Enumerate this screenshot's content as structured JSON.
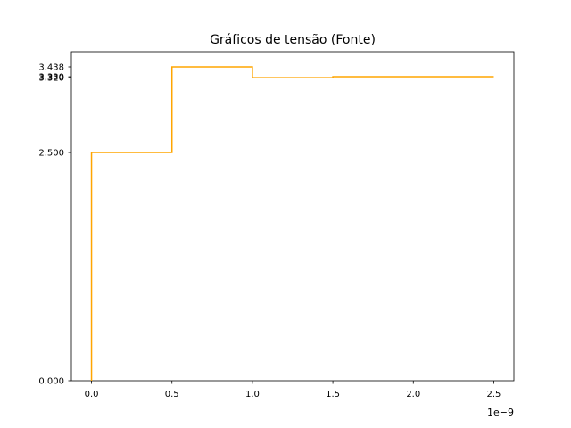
{
  "chart_data": {
    "type": "line",
    "drawstyle": "steps-post",
    "title": "Gráficos de tensão (Fonte)",
    "xlabel": "",
    "ylabel": "",
    "color": "#ffa500",
    "grid": false,
    "legend": "none",
    "x_offset_text": "1e−9",
    "xlim": [
      -1.25e-10,
      2.625e-09
    ],
    "ylim": [
      0.0,
      3.438
    ],
    "x_ticks": [
      {
        "value": 0.0,
        "label": "0.0"
      },
      {
        "value": 5e-10,
        "label": "0.5"
      },
      {
        "value": 1e-09,
        "label": "1.0"
      },
      {
        "value": 1.5e-09,
        "label": "1.5"
      },
      {
        "value": 2e-09,
        "label": "2.0"
      },
      {
        "value": 2.5e-09,
        "label": "2.5"
      }
    ],
    "y_ticks": [
      {
        "value": 0.0,
        "label": "0.000"
      },
      {
        "value": 2.5,
        "label": "2.500"
      },
      {
        "value": 3.32,
        "label": "3.320"
      },
      {
        "value": 3.33,
        "label": "3.330"
      },
      {
        "value": 3.438,
        "label": "3.438"
      }
    ],
    "series": [
      {
        "x": [
          0.0,
          0.0,
          5e-10,
          1e-09,
          1.5e-09,
          2.5e-09
        ],
        "y": [
          0.0,
          2.5,
          3.438,
          3.32,
          3.33,
          3.33
        ]
      }
    ]
  }
}
